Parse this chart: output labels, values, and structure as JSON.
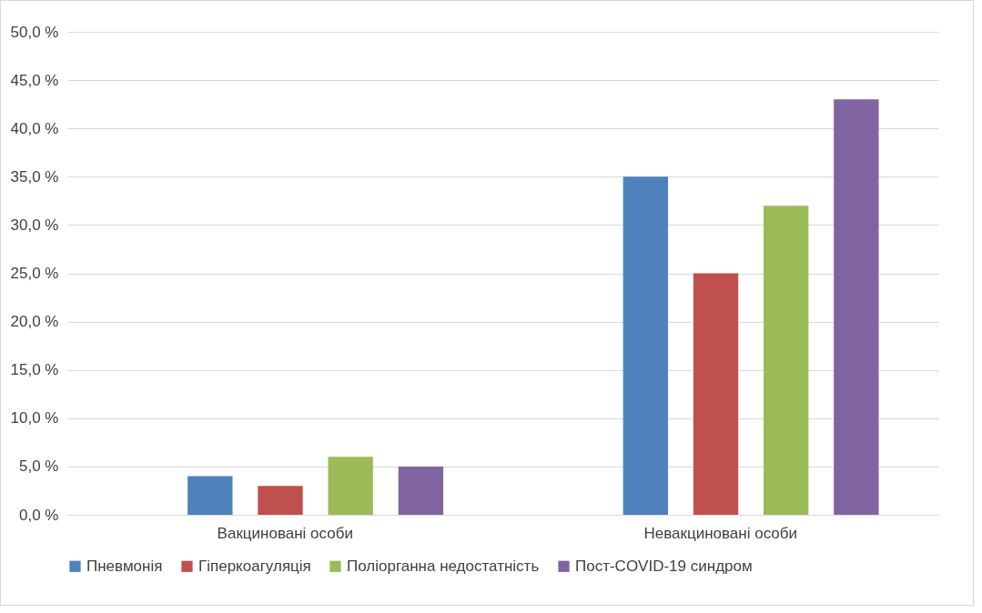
{
  "chart_data": {
    "type": "bar",
    "categories": [
      "Вакциновані особи",
      "Невакциновані особи"
    ],
    "series": [
      {
        "name": "Пневмонія",
        "color": "#4f81bd",
        "values": [
          4,
          35
        ]
      },
      {
        "name": "Гіперкоагуляція",
        "color": "#c0504d",
        "values": [
          3,
          25
        ]
      },
      {
        "name": "Поліорганна недостатність",
        "color": "#9bbb59",
        "values": [
          6,
          32
        ]
      },
      {
        "name": "Пост-COVID-19 синдром",
        "color": "#8064a2",
        "values": [
          5,
          43
        ]
      }
    ],
    "ylim": [
      0,
      50
    ],
    "yticks": [
      {
        "value": 0,
        "label": "0,0 %"
      },
      {
        "value": 5,
        "label": "5,0 %"
      },
      {
        "value": 10,
        "label": "10,0 %"
      },
      {
        "value": 15,
        "label": "15,0 %"
      },
      {
        "value": 20,
        "label": "20,0 %"
      },
      {
        "value": 25,
        "label": "25,0 %"
      },
      {
        "value": 30,
        "label": "30,0 %"
      },
      {
        "value": 35,
        "label": "35,0 %"
      },
      {
        "value": 40,
        "label": "40,0 %"
      },
      {
        "value": 45,
        "label": "45,0 %"
      },
      {
        "value": 50,
        "label": "50,0 %"
      }
    ],
    "grid": "y",
    "legend": "bottom"
  }
}
